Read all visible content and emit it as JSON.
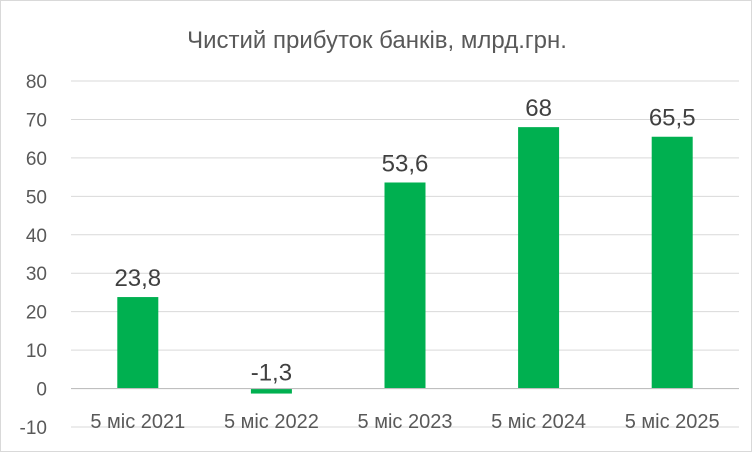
{
  "chart_data": {
    "type": "bar",
    "title": "Чистий прибуток банків, млрд.грн.",
    "xlabel": "",
    "ylabel": "",
    "categories": [
      "5 міс 2021",
      "5 міс 2022",
      "5 міс 2023",
      "5 міс 2024",
      "5 міс 2025"
    ],
    "values": [
      23.8,
      -1.3,
      53.6,
      68,
      65.5
    ],
    "data_labels": [
      "23,8",
      "-1,3",
      "53,6",
      "68",
      "65,5"
    ],
    "ylim": [
      -10,
      80
    ],
    "yticks": [
      -10,
      0,
      10,
      20,
      30,
      40,
      50,
      60,
      70,
      80
    ],
    "ytick_labels": [
      "-10",
      "0",
      "10",
      "20",
      "30",
      "40",
      "50",
      "60",
      "70",
      "80"
    ],
    "grid": true,
    "legend": "none",
    "colors": {
      "bar": "#00b050",
      "grid": "#d9d9d9",
      "axis": "#bfbfbf",
      "text": "#595959",
      "label": "#404040"
    }
  }
}
